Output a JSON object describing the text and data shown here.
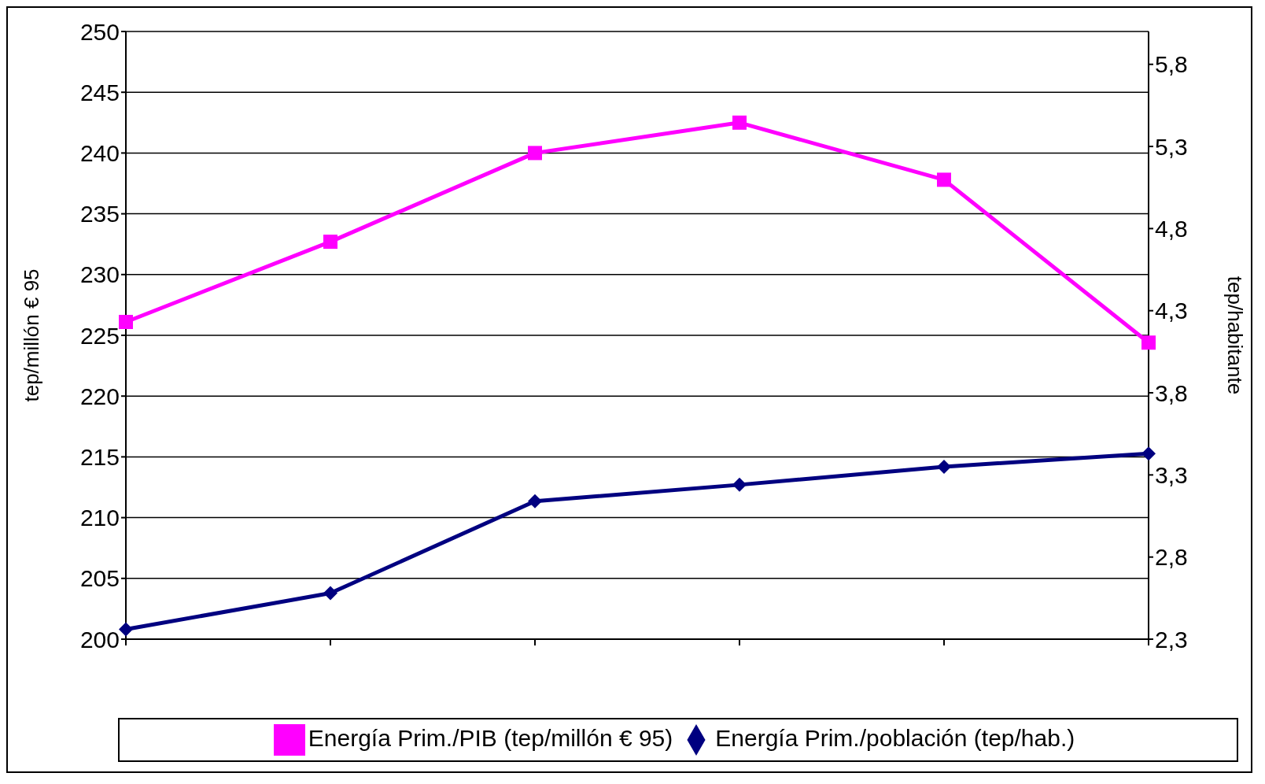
{
  "chart_data": {
    "type": "line",
    "ylabel": "tep/millón € 95",
    "y2label": "tep/habitante",
    "categories": [
      null,
      null,
      null,
      null,
      null,
      null
    ],
    "ylim": [
      200,
      250
    ],
    "yticks": [
      200,
      205,
      210,
      215,
      220,
      225,
      230,
      235,
      240,
      245,
      250
    ],
    "y2lim": [
      2.3,
      6.0
    ],
    "y2ticks": [
      {
        "value": 2.3,
        "label": "2,3"
      },
      {
        "value": 2.8,
        "label": "2,8"
      },
      {
        "value": 3.3,
        "label": "3,3"
      },
      {
        "value": 3.8,
        "label": "3,8"
      },
      {
        "value": 4.3,
        "label": "4,3"
      },
      {
        "value": 4.8,
        "label": "4,8"
      },
      {
        "value": 5.3,
        "label": "5,3"
      },
      {
        "value": 5.8,
        "label": "5,8"
      }
    ],
    "grid": "y",
    "legend": "bottom",
    "series": [
      {
        "name": "Energía Prim./PIB (tep/millón € 95)",
        "color": "#ff00ff",
        "marker": "square",
        "values": [
          226.1,
          232.7,
          240.0,
          242.5,
          237.8,
          224.4
        ]
      },
      {
        "name": "Energía Prim./población (tep/hab.)",
        "color": "#000080",
        "marker": "diamond",
        "axis": "y2",
        "values": [
          2.36,
          2.58,
          3.14,
          3.24,
          3.35,
          3.43
        ]
      }
    ]
  }
}
